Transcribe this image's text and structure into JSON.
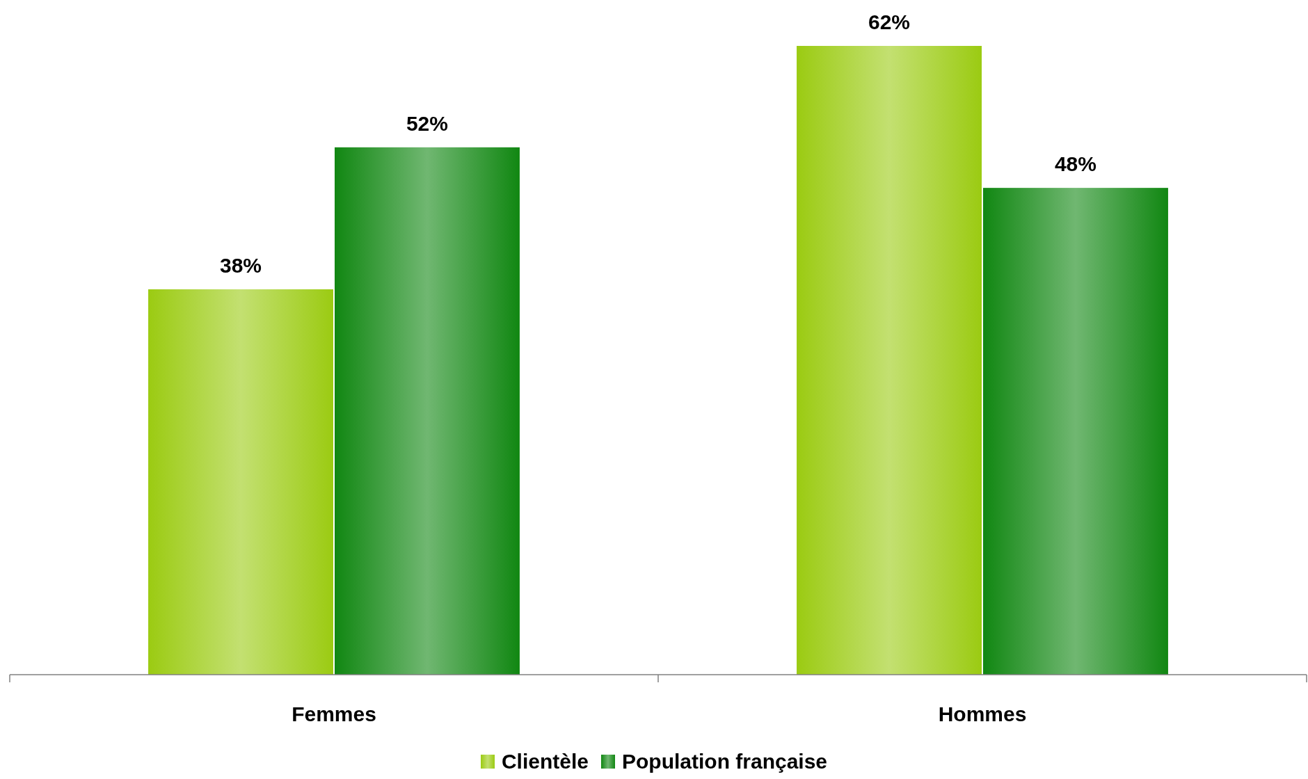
{
  "chart_data": {
    "type": "bar",
    "categories": [
      "Femmes",
      "Hommes"
    ],
    "series": [
      {
        "name": "Clientèle",
        "color": "#9bcb12",
        "values": [
          38,
          62
        ],
        "value_labels": [
          "38%",
          "62%"
        ]
      },
      {
        "name": "Population française",
        "color": "#118712",
        "values": [
          52,
          48
        ],
        "value_labels": [
          "52%",
          "48%"
        ]
      }
    ],
    "legend": "bottom",
    "tick_labels": "x"
  }
}
